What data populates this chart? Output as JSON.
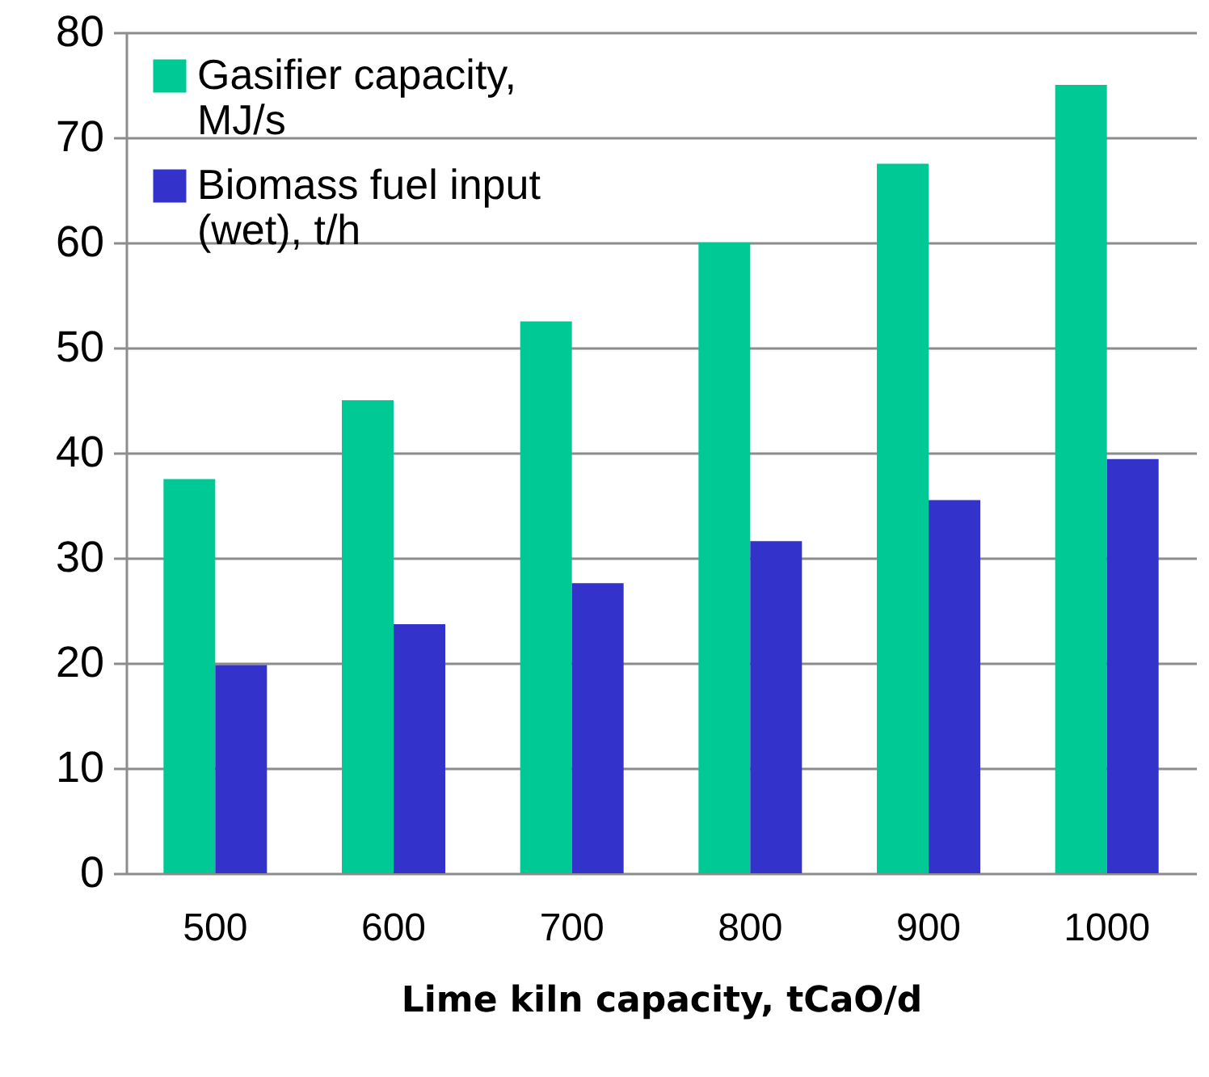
{
  "chart_data": {
    "type": "bar",
    "xlabel": "Lime kiln capacity, tCaO/d",
    "categories": [
      "500",
      "600",
      "700",
      "800",
      "900",
      "1000"
    ],
    "series": [
      {
        "name": "Gasifier capacity, MJ/s",
        "color": "#00c996",
        "values": [
          37.5,
          45,
          52.5,
          60,
          67.5,
          75
        ]
      },
      {
        "name": "Biomass fuel input (wet), t/h",
        "color": "#3333cc",
        "values": [
          19.8,
          23.7,
          27.6,
          31.6,
          35.5,
          39.4
        ]
      }
    ],
    "ylim": [
      0,
      80
    ],
    "yticks": [
      0,
      10,
      20,
      30,
      40,
      50,
      60,
      70,
      80
    ],
    "grid": "y",
    "legend": "top left"
  }
}
